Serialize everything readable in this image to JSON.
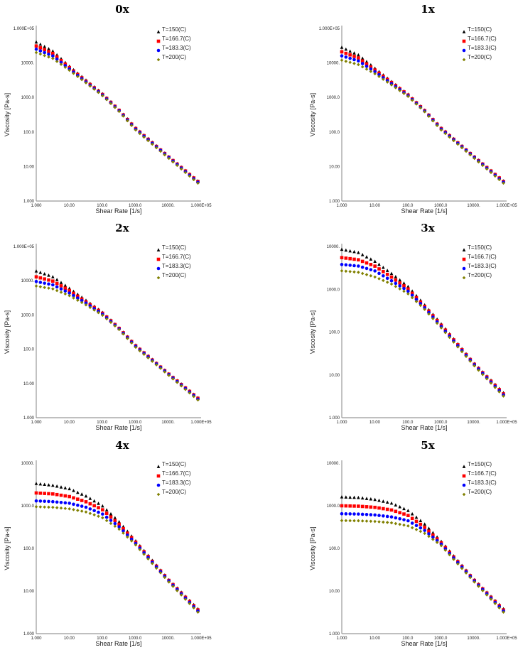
{
  "chart_data": [
    {
      "type": "scatter",
      "title": "0x",
      "xlabel": "Shear Rate [1/s]",
      "ylabel": "Viscosity [Pa-s]",
      "xscale": "log",
      "yscale": "log",
      "xlim": [
        1,
        100000
      ],
      "ylim": [
        1,
        100000
      ],
      "xticks": [
        "1.000",
        "10.00",
        "100.0",
        "1000.0",
        "10000.",
        "1.000E+05"
      ],
      "yticks": [
        "1.000",
        "10.00",
        "100.0",
        "1000.0",
        "10000.",
        "1.000E+05"
      ],
      "legend": "top-right",
      "x": [
        1,
        3.162,
        10,
        31.62,
        100,
        316.2,
        1000,
        10000,
        80000
      ],
      "series": [
        {
          "name": "T=150(C)",
          "values": [
            40000,
            22000,
            8000,
            3200,
            1300,
            450,
            135,
            20,
            3.8
          ]
        },
        {
          "name": "T=166.7(C)",
          "values": [
            31000,
            19000,
            7400,
            3000,
            1250,
            440,
            130,
            19.5,
            3.7
          ]
        },
        {
          "name": "T=183.3(C)",
          "values": [
            25000,
            16000,
            6800,
            2850,
            1200,
            425,
            125,
            19,
            3.5
          ]
        },
        {
          "name": "T=200(C)",
          "values": [
            20000,
            13500,
            6200,
            2700,
            1150,
            410,
            118,
            18,
            3.3
          ]
        }
      ]
    },
    {
      "type": "scatter",
      "title": "1x",
      "xlabel": "Shear Rate [1/s]",
      "ylabel": "Viscosity [Pa-s]",
      "xscale": "log",
      "yscale": "log",
      "xlim": [
        1,
        100000
      ],
      "ylim": [
        1,
        100000
      ],
      "xticks": [
        "1.000",
        "10.00",
        "100.0",
        "1000.0",
        "10000.",
        "1.000E+05"
      ],
      "yticks": [
        "1.000",
        "10.00",
        "100.0",
        "1000.0",
        "10000.",
        "1.000E+05"
      ],
      "legend": "top-right",
      "x": [
        1,
        3.162,
        10,
        31.62,
        100,
        316.2,
        1000,
        10000,
        80000
      ],
      "series": [
        {
          "name": "T=150(C)",
          "values": [
            28000,
            17000,
            7000,
            2900,
            1250,
            440,
            135,
            20,
            3.8
          ]
        },
        {
          "name": "T=166.7(C)",
          "values": [
            21000,
            14000,
            6300,
            2750,
            1200,
            430,
            130,
            19.5,
            3.7
          ]
        },
        {
          "name": "T=183.3(C)",
          "values": [
            16000,
            11500,
            5600,
            2550,
            1150,
            415,
            125,
            19,
            3.5
          ]
        },
        {
          "name": "T=200(C)",
          "values": [
            12000,
            9000,
            4900,
            2350,
            1100,
            400,
            118,
            18,
            3.3
          ]
        }
      ]
    },
    {
      "type": "scatter",
      "title": "2x",
      "xlabel": "Shear Rate [1/s]",
      "ylabel": "Viscosity [Pa-s]",
      "xscale": "log",
      "yscale": "log",
      "xlim": [
        1,
        100000
      ],
      "ylim": [
        1,
        100000
      ],
      "xticks": [
        "1.000",
        "10.00",
        "100.0",
        "1000.0",
        "10000.",
        "1.000E+05"
      ],
      "yticks": [
        "1.000",
        "10.00",
        "100.0",
        "1000.0",
        "10000.",
        "1.000E+05"
      ],
      "legend": "top-right",
      "x": [
        1,
        3.162,
        10,
        31.62,
        100,
        316.2,
        1000,
        10000,
        80000
      ],
      "series": [
        {
          "name": "T=150(C)",
          "values": [
            19000,
            13000,
            6000,
            2700,
            1200,
            430,
            135,
            20,
            3.8
          ]
        },
        {
          "name": "T=166.7(C)",
          "values": [
            13000,
            9800,
            5200,
            2450,
            1150,
            420,
            130,
            19.5,
            3.7
          ]
        },
        {
          "name": "T=183.3(C)",
          "values": [
            9500,
            7600,
            4400,
            2250,
            1080,
            405,
            125,
            19,
            3.5
          ]
        },
        {
          "name": "T=200(C)",
          "values": [
            7000,
            5800,
            3700,
            2000,
            1000,
            390,
            118,
            18,
            3.3
          ]
        }
      ]
    },
    {
      "type": "scatter",
      "title": "3x",
      "xlabel": "Shear Rate [1/s]",
      "ylabel": "Viscosity [Pa-s]",
      "xscale": "log",
      "yscale": "log",
      "xlim": [
        1,
        100000
      ],
      "ylim": [
        1,
        10000
      ],
      "xticks": [
        "1.000",
        "10.00",
        "100.0",
        "1000.0",
        "10000.",
        "1.000E+05"
      ],
      "yticks": [
        "1.000",
        "10.00",
        "100.0",
        "1000.0",
        "10000."
      ],
      "legend": "top-right",
      "x": [
        1,
        3.162,
        10,
        31.62,
        100,
        316.2,
        1000,
        10000,
        80000
      ],
      "series": [
        {
          "name": "T=150(C)",
          "values": [
            8500,
            7200,
            4500,
            2350,
            1180,
            440,
            160,
            19,
            3.8
          ]
        },
        {
          "name": "T=166.7(C)",
          "values": [
            5500,
            4900,
            3500,
            1950,
            1040,
            410,
            150,
            18.5,
            3.6
          ]
        },
        {
          "name": "T=183.3(C)",
          "values": [
            3800,
            3500,
            2700,
            1600,
            920,
            380,
            140,
            18,
            3.4
          ]
        },
        {
          "name": "T=200(C)",
          "values": [
            2700,
            2500,
            1950,
            1340,
            800,
            350,
            130,
            17,
            3.2
          ]
        }
      ]
    },
    {
      "type": "scatter",
      "title": "4x",
      "xlabel": "Shear Rate [1/s]",
      "ylabel": "Viscosity [Pa-s]",
      "xscale": "log",
      "yscale": "log",
      "xlim": [
        1,
        100000
      ],
      "ylim": [
        1,
        10000
      ],
      "xticks": [
        "1.000",
        "10.00",
        "100.0",
        "1000.0",
        "10000.",
        "1.000E+05"
      ],
      "yticks": [
        "1.000",
        "10.00",
        "100.0",
        "1000.0",
        "10000."
      ],
      "legend": "top-right",
      "x": [
        1,
        3.162,
        10,
        31.62,
        100,
        316.2,
        1000,
        10000,
        80000
      ],
      "series": [
        {
          "name": "T=150(C)",
          "values": [
            3300,
            3000,
            2500,
            1700,
            1000,
            430,
            155,
            19,
            3.8
          ]
        },
        {
          "name": "T=166.7(C)",
          "values": [
            2000,
            1900,
            1650,
            1250,
            820,
            380,
            145,
            18.5,
            3.6
          ]
        },
        {
          "name": "T=183.3(C)",
          "values": [
            1300,
            1250,
            1150,
            930,
            650,
            330,
            135,
            18,
            3.4
          ]
        },
        {
          "name": "T=200(C)",
          "values": [
            950,
            920,
            850,
            720,
            530,
            290,
            125,
            17,
            3.2
          ]
        }
      ]
    },
    {
      "type": "scatter",
      "title": "5x",
      "xlabel": "Shear Rate [1/s]",
      "ylabel": "Viscosity [Pa-s]",
      "xscale": "log",
      "yscale": "log",
      "xlim": [
        1,
        100000
      ],
      "ylim": [
        1,
        10000
      ],
      "xticks": [
        "1.000",
        "10.00",
        "100.0",
        "1000.0",
        "10000.",
        "1.000E+05"
      ],
      "yticks": [
        "1.000",
        "10.00",
        "100.0",
        "1000.0",
        "10000."
      ],
      "legend": "top-right",
      "x": [
        1,
        3.162,
        10,
        31.62,
        100,
        316.2,
        1000,
        10000,
        80000
      ],
      "series": [
        {
          "name": "T=150(C)",
          "values": [
            1600,
            1550,
            1400,
            1150,
            780,
            380,
            150,
            19,
            3.8
          ]
        },
        {
          "name": "T=166.7(C)",
          "values": [
            1000,
            980,
            920,
            800,
            600,
            320,
            140,
            18.5,
            3.6
          ]
        },
        {
          "name": "T=183.3(C)",
          "values": [
            650,
            640,
            610,
            550,
            450,
            270,
            130,
            18,
            3.4
          ]
        },
        {
          "name": "T=200(C)",
          "values": [
            450,
            445,
            430,
            400,
            340,
            230,
            120,
            17,
            3.2
          ]
        }
      ]
    }
  ],
  "series_colors": [
    "#000000",
    "#ff0000",
    "#0000ff",
    "#808000"
  ],
  "series_markers": [
    "triangle",
    "square",
    "circle",
    "diamond"
  ]
}
